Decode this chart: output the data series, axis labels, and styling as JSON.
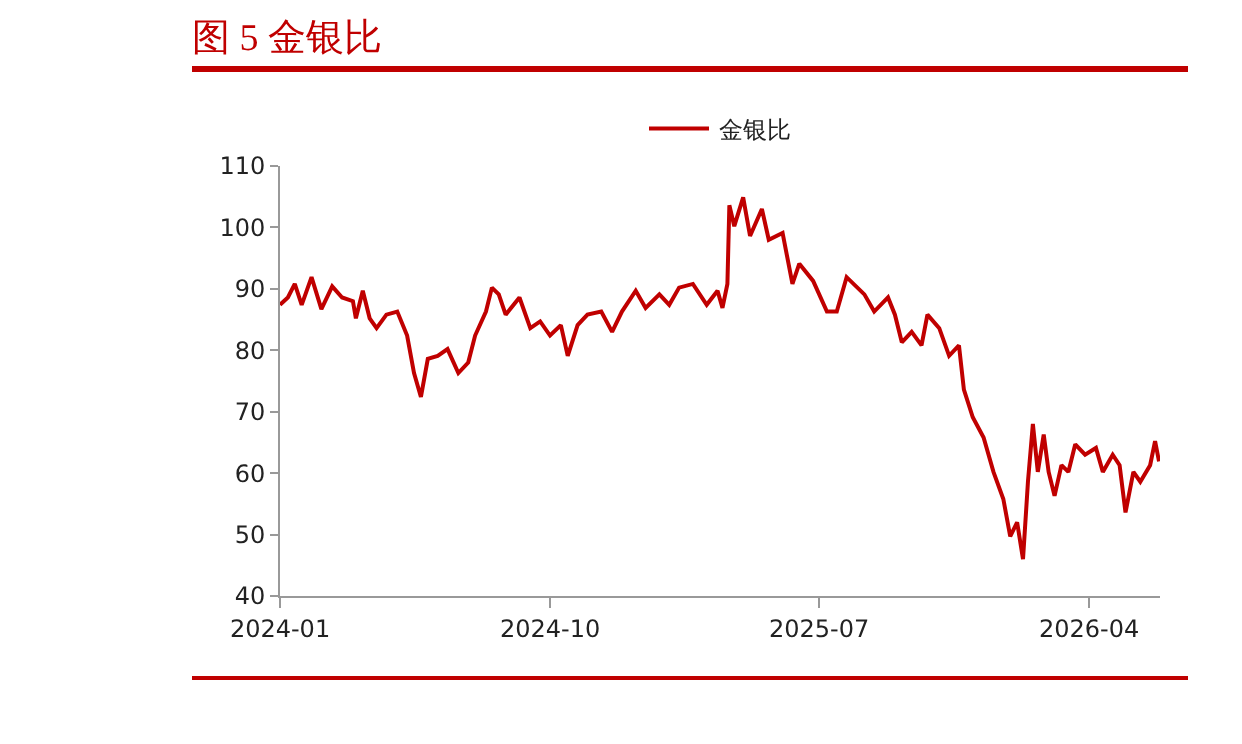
{
  "chart_data": {
    "type": "line",
    "title": "图 5 金银比",
    "x": [
      "2024-01-01",
      "2024-01-09",
      "2024-01-16",
      "2024-01-23",
      "2024-02-02",
      "2024-02-12",
      "2024-02-23",
      "2024-03-04",
      "2024-03-15",
      "2024-03-18",
      "2024-03-25",
      "2024-04-01",
      "2024-04-08",
      "2024-04-18",
      "2024-04-29",
      "2024-05-09",
      "2024-05-16",
      "2024-05-23",
      "2024-05-30",
      "2024-06-09",
      "2024-06-19",
      "2024-06-30",
      "2024-07-10",
      "2024-07-17",
      "2024-07-28",
      "2024-08-03",
      "2024-08-10",
      "2024-08-17",
      "2024-08-31",
      "2024-09-11",
      "2024-09-21",
      "2024-10-01",
      "2024-10-12",
      "2024-10-19",
      "2024-10-29",
      "2024-11-08",
      "2024-11-22",
      "2024-12-03",
      "2024-12-13",
      "2024-12-27",
      "2025-01-06",
      "2025-01-20",
      "2025-01-30",
      "2025-02-09",
      "2025-02-23",
      "2025-03-09",
      "2025-03-20",
      "2025-03-25",
      "2025-03-30",
      "2025-04-01",
      "2025-04-06",
      "2025-04-15",
      "2025-04-22",
      "2025-05-04",
      "2025-05-11",
      "2025-05-25",
      "2025-06-04",
      "2025-06-11",
      "2025-06-25",
      "2025-07-09",
      "2025-07-19",
      "2025-07-29",
      "2025-08-16",
      "2025-08-26",
      "2025-09-09",
      "2025-09-16",
      "2025-09-23",
      "2025-10-03",
      "2025-10-13",
      "2025-10-19",
      "2025-10-31",
      "2025-11-10",
      "2025-11-20",
      "2025-11-25",
      "2025-12-04",
      "2025-12-15",
      "2025-12-25",
      "2026-01-04",
      "2026-01-11",
      "2026-01-18",
      "2026-01-24",
      "2026-01-29",
      "2026-02-03",
      "2026-02-08",
      "2026-02-14",
      "2026-02-19",
      "2026-02-25",
      "2026-03-04",
      "2026-03-11",
      "2026-03-18",
      "2026-03-28",
      "2026-04-08",
      "2026-04-15",
      "2026-04-25",
      "2026-05-02",
      "2026-05-08",
      "2026-05-16",
      "2026-05-23",
      "2026-06-02",
      "2026-06-07",
      "2026-06-11"
    ],
    "series": [
      {
        "name": "金银比",
        "color": "#c00000",
        "values": [
          87.4,
          88.6,
          90.8,
          87.4,
          91.9,
          86.7,
          90.4,
          88.6,
          88.0,
          85.2,
          89.7,
          85.2,
          83.6,
          85.8,
          86.3,
          82.4,
          76.3,
          72.4,
          78.6,
          79.1,
          80.2,
          76.3,
          78.0,
          82.4,
          86.3,
          90.2,
          89.1,
          85.8,
          88.6,
          83.6,
          84.7,
          82.4,
          84.1,
          79.1,
          84.1,
          85.8,
          86.3,
          83.0,
          86.3,
          89.7,
          86.9,
          89.1,
          87.4,
          90.2,
          90.8,
          87.4,
          89.7,
          86.9,
          90.8,
          103.6,
          100.2,
          104.9,
          98.6,
          103.0,
          98.0,
          99.1,
          90.8,
          94.1,
          91.3,
          86.3,
          86.3,
          91.9,
          89.1,
          86.3,
          88.6,
          85.8,
          81.3,
          83.0,
          80.8,
          85.8,
          83.6,
          79.1,
          80.8,
          73.6,
          69.1,
          65.8,
          60.2,
          55.8,
          49.7,
          52.0,
          46.0,
          58.6,
          68.0,
          60.2,
          66.3,
          60.2,
          56.3,
          61.3,
          60.2,
          64.7,
          63.0,
          64.1,
          60.2,
          63.0,
          61.3,
          53.6,
          60.2,
          58.6,
          61.3,
          65.2,
          61.9
        ]
      }
    ],
    "xlim": [
      "2024-01-01",
      "2026-06-12"
    ],
    "xticks": [
      "2024-01",
      "2024-10",
      "2025-07",
      "2026-04"
    ],
    "ylim": [
      40,
      110
    ],
    "yticks": [
      40,
      50,
      60,
      70,
      80,
      90,
      100,
      110
    ],
    "grid": false,
    "legend": "top",
    "marker": "none",
    "line_style": "solid"
  }
}
